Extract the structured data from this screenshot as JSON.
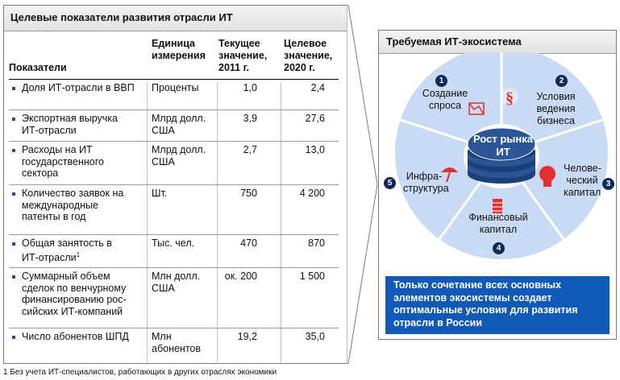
{
  "left": {
    "title": "Целевые показатели развития отрасли ИТ",
    "headers": {
      "indicator": "Показатели",
      "unit": "Единица измерения",
      "current": "Текущее значение, 2011 г.",
      "target": "Целевое значение, 2020 г."
    },
    "rows": [
      {
        "indicator": "Доля ИТ-отрасли в ВВП",
        "unit": "Проценты",
        "current": "1,0",
        "target": "2,4"
      },
      {
        "indicator": "Экспортная выручка ИТ-отрасли",
        "unit": "Млрд долл. США",
        "current": "3,9",
        "target": "27,6"
      },
      {
        "indicator": "Расходы на ИТ государственного сектора",
        "unit": "Млрд долл. США",
        "current": "2,7",
        "target": "13,0"
      },
      {
        "indicator": "Количество заявок на международные патенты в год",
        "unit": "Шт.",
        "current": "750",
        "target": "4 200"
      },
      {
        "indicator": "Общая занятость в ИТ-отрасли",
        "indicator_sup": "1",
        "unit": "Тыс. чел.",
        "current": "470",
        "target": "870"
      },
      {
        "indicator": "Суммарный объем сделок по венчурному финансированию рос- сийских ИТ-компаний",
        "unit": "Млн долл. США",
        "current": "ок. 200",
        "target": "1 500"
      },
      {
        "indicator": "Число абонентов ШПД",
        "unit": "Млн абонентов",
        "current": "19,2",
        "target": "35,0"
      }
    ]
  },
  "right": {
    "title": "Требуемая ИТ-экосистема",
    "center": "Рост рынка ИТ",
    "segments": [
      {
        "num": "1",
        "label": "Создание спроса"
      },
      {
        "num": "2",
        "label": "Условия ведения бизнеса"
      },
      {
        "num": "3",
        "label": "Челове- ческий капитал"
      },
      {
        "num": "4",
        "label": "Финансовый капитал"
      },
      {
        "num": "5",
        "label": "Инфра- структура"
      }
    ],
    "callout": "Только сочетание всех основных элементов экосистемы создает оптимальные условия для развития отрасли в России"
  },
  "footnote": "1 Без учета ИТ-специалистов, работающих в других отраслях экономики",
  "colors": {
    "wheel": "#c9daf4",
    "wheel_edge": "#b3c8ea",
    "blue_box": "#1159b8",
    "badge": "#0d2b5a",
    "icon_red": "#e03030",
    "hub": "#2a5597"
  }
}
